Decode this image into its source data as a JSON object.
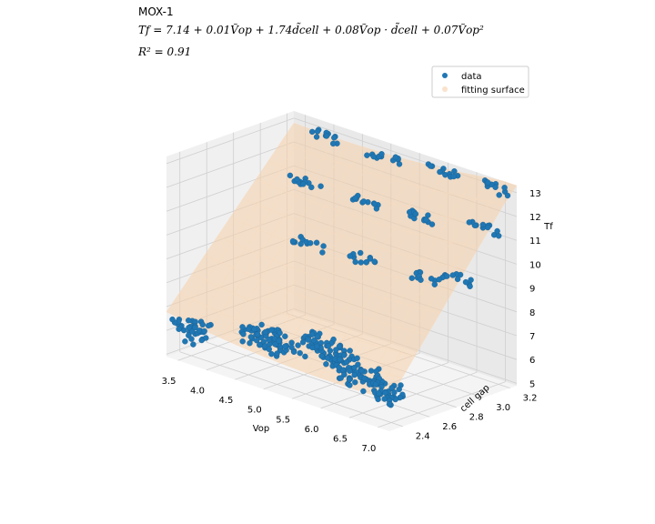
{
  "title_lines": {
    "name": "MOX-1",
    "equation": "Tf = 7.14 + 0.01Ṽop + 1.74d̃cell + 0.08Ṽop · d̃cell + 0.07Ṽop²",
    "r2": "R² = 0.91"
  },
  "colors": {
    "data": "#1f77b4",
    "surface": "#f6cfa9",
    "pane_left": "#f0f0f0",
    "pane_right": "#e9e9e9",
    "pane_floor": "#f4f4f4",
    "grid": "#cfcfcf"
  },
  "chart_data": {
    "type": "scatter",
    "subtype": "3d-scatter-with-fitted-surface",
    "xlabel": "Vop",
    "ylabel": "cell gap",
    "zlabel": "Tf",
    "xlim": [
      3.3,
      7.2
    ],
    "ylim": [
      2.3,
      3.25
    ],
    "zlim": [
      4.9,
      13.3
    ],
    "xticks": [
      "3.5",
      "4.0",
      "4.5",
      "5.0",
      "5.5",
      "6.0",
      "6.5",
      "7.0"
    ],
    "yticks": [
      "2.4",
      "2.6",
      "2.8",
      "3.0",
      "3.2"
    ],
    "zticks": [
      "5",
      "6",
      "7",
      "8",
      "9",
      "10",
      "11",
      "12",
      "13"
    ],
    "legend": [
      "data",
      "fitting surface"
    ],
    "legend_position": "top-right",
    "grid": true,
    "series": [
      {
        "name": "data",
        "cluster_centers": [
          {
            "x": 3.5,
            "y": 2.4,
            "z": 6.0
          },
          {
            "x": 4.5,
            "y": 2.5,
            "z": 6.3
          },
          {
            "x": 5.0,
            "y": 2.45,
            "z": 6.5
          },
          {
            "x": 5.5,
            "y": 2.5,
            "z": 6.7
          },
          {
            "x": 6.0,
            "y": 2.45,
            "z": 6.6
          },
          {
            "x": 6.5,
            "y": 2.4,
            "z": 6.4
          },
          {
            "x": 7.0,
            "y": 2.35,
            "z": 6.3
          },
          {
            "x": 4.5,
            "y": 2.85,
            "z": 9.5
          },
          {
            "x": 5.5,
            "y": 2.85,
            "z": 9.6
          },
          {
            "x": 6.5,
            "y": 2.85,
            "z": 9.7
          },
          {
            "x": 7.0,
            "y": 2.9,
            "z": 9.9
          },
          {
            "x": 4.0,
            "y": 3.05,
            "z": 11.2
          },
          {
            "x": 5.0,
            "y": 3.05,
            "z": 11.3
          },
          {
            "x": 6.0,
            "y": 3.05,
            "z": 11.4
          },
          {
            "x": 7.0,
            "y": 3.1,
            "z": 11.6
          },
          {
            "x": 4.0,
            "y": 3.2,
            "z": 12.9
          },
          {
            "x": 5.0,
            "y": 3.2,
            "z": 12.9
          },
          {
            "x": 6.0,
            "y": 3.2,
            "z": 13.0
          },
          {
            "x": 7.0,
            "y": 3.2,
            "z": 13.1
          }
        ]
      },
      {
        "name": "fitting surface",
        "model": {
          "intercept": 7.14,
          "v": 0.01,
          "d": 1.74,
          "vd": 0.08,
          "v2": 0.07
        }
      }
    ]
  }
}
